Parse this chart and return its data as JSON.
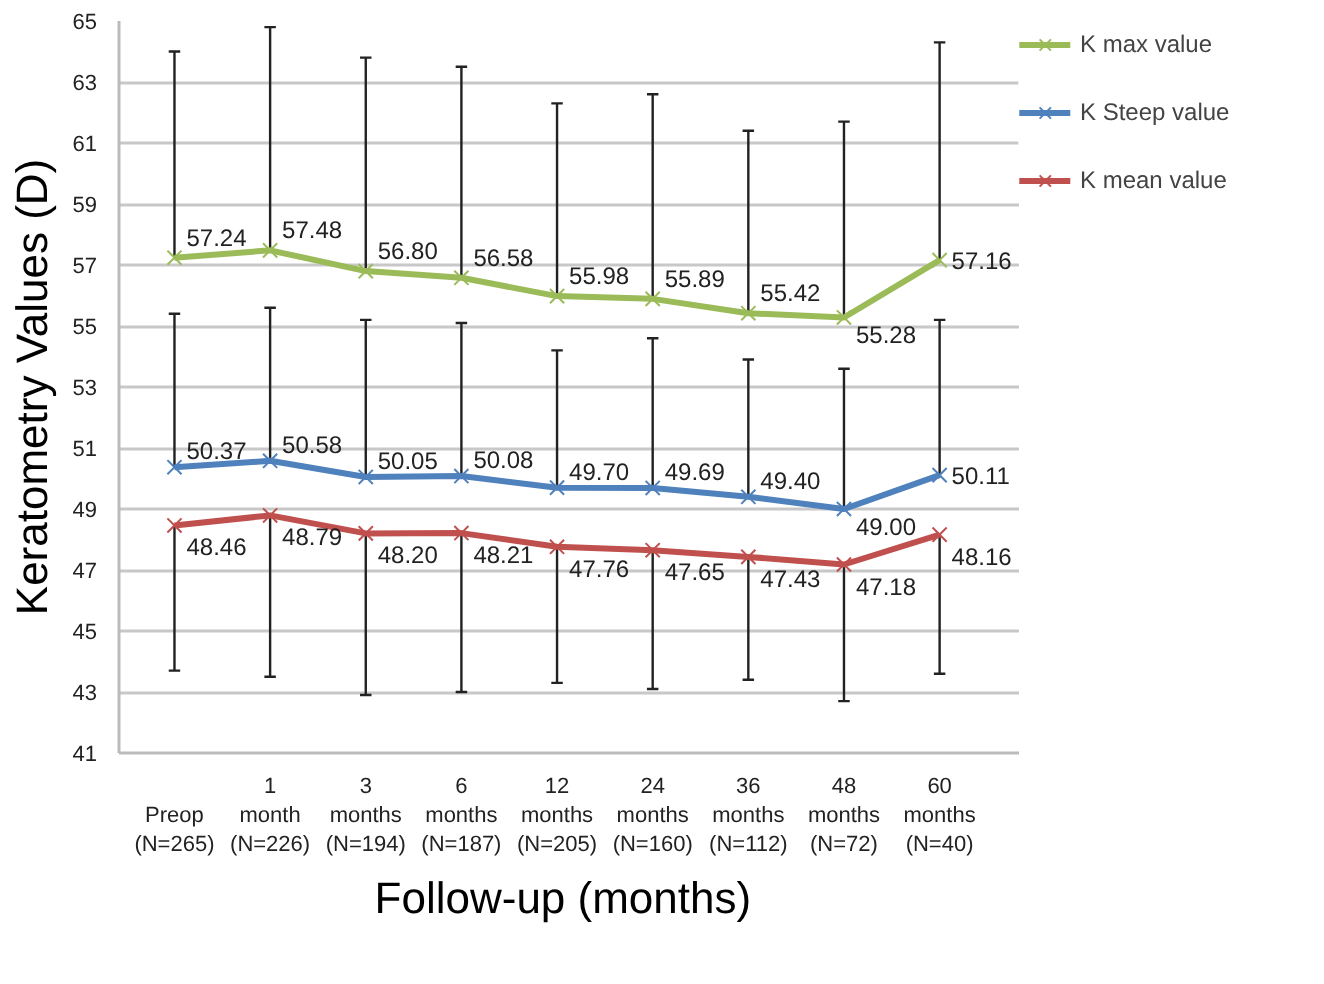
{
  "chart_data": {
    "type": "line",
    "xlabel": "Follow-up  (months)",
    "ylabel": "Keratometry Values (D)",
    "categories": [
      "Preop\n(N=265)",
      "1\nmonth\n(N=226)",
      "3\nmonths\n(N=194)",
      "6\nmonths\n(N=187)",
      "12\nmonths\n(N=205)",
      "24\nmonths\n(N=160)",
      "36\nmonths\n(N=112)",
      "48\nmonths\n(N=72)",
      "60\nmonths\n(N=40)"
    ],
    "ylim": [
      41,
      65
    ],
    "yticks": [
      41,
      43,
      45,
      47,
      49,
      51,
      53,
      55,
      57,
      59,
      61,
      63,
      65
    ],
    "grid": "y",
    "legend": "top right",
    "marker": "cross",
    "line_style": "solid",
    "series": [
      {
        "name": "K max value",
        "color": "#9bbb59",
        "values": [
          57.24,
          57.48,
          56.8,
          56.58,
          55.98,
          55.89,
          55.42,
          55.28,
          57.16
        ],
        "value_labels": [
          "57.24",
          "57.48",
          "56.80",
          "56.58",
          "55.98",
          "55.89",
          "55.42",
          "55.28",
          "57.16"
        ],
        "errors": [
          [
            57.24,
            64.0
          ],
          [
            57.48,
            64.8
          ],
          [
            56.8,
            63.8
          ],
          [
            56.58,
            63.5
          ],
          [
            55.98,
            62.3
          ],
          [
            55.89,
            62.6
          ],
          [
            55.42,
            61.4
          ],
          [
            55.28,
            61.7
          ],
          [
            57.16,
            64.3
          ]
        ]
      },
      {
        "name": "K Steep value",
        "color": "#4f81bd",
        "values": [
          50.37,
          50.58,
          50.05,
          50.08,
          49.7,
          49.69,
          49.4,
          49.0,
          50.11
        ],
        "value_labels": [
          "50.37",
          "50.58",
          "50.05",
          "50.08",
          "49.70",
          "49.69",
          "49.40",
          "49.00",
          "50.11"
        ],
        "errors": [
          [
            50.37,
            55.4
          ],
          [
            50.58,
            55.6
          ],
          [
            50.05,
            55.2
          ],
          [
            50.08,
            55.1
          ],
          [
            49.7,
            54.2
          ],
          [
            49.69,
            54.6
          ],
          [
            49.4,
            53.9
          ],
          [
            49.0,
            53.6
          ],
          [
            50.11,
            55.2
          ]
        ]
      },
      {
        "name": "K mean value",
        "color": "#c0504d",
        "values": [
          48.46,
          48.79,
          48.2,
          48.21,
          47.76,
          47.65,
          47.43,
          47.18,
          48.16
        ],
        "value_labels": [
          "48.46",
          "48.79",
          "48.20",
          "48.21",
          "47.76",
          "47.65",
          "47.43",
          "47.18",
          "48.16"
        ],
        "errors": [
          [
            43.7,
            48.46
          ],
          [
            43.5,
            48.79
          ],
          [
            42.9,
            48.2
          ],
          [
            43.0,
            48.21
          ],
          [
            43.3,
            47.76
          ],
          [
            43.1,
            47.65
          ],
          [
            43.4,
            47.43
          ],
          [
            42.7,
            47.18
          ],
          [
            43.6,
            48.16
          ]
        ]
      }
    ]
  }
}
